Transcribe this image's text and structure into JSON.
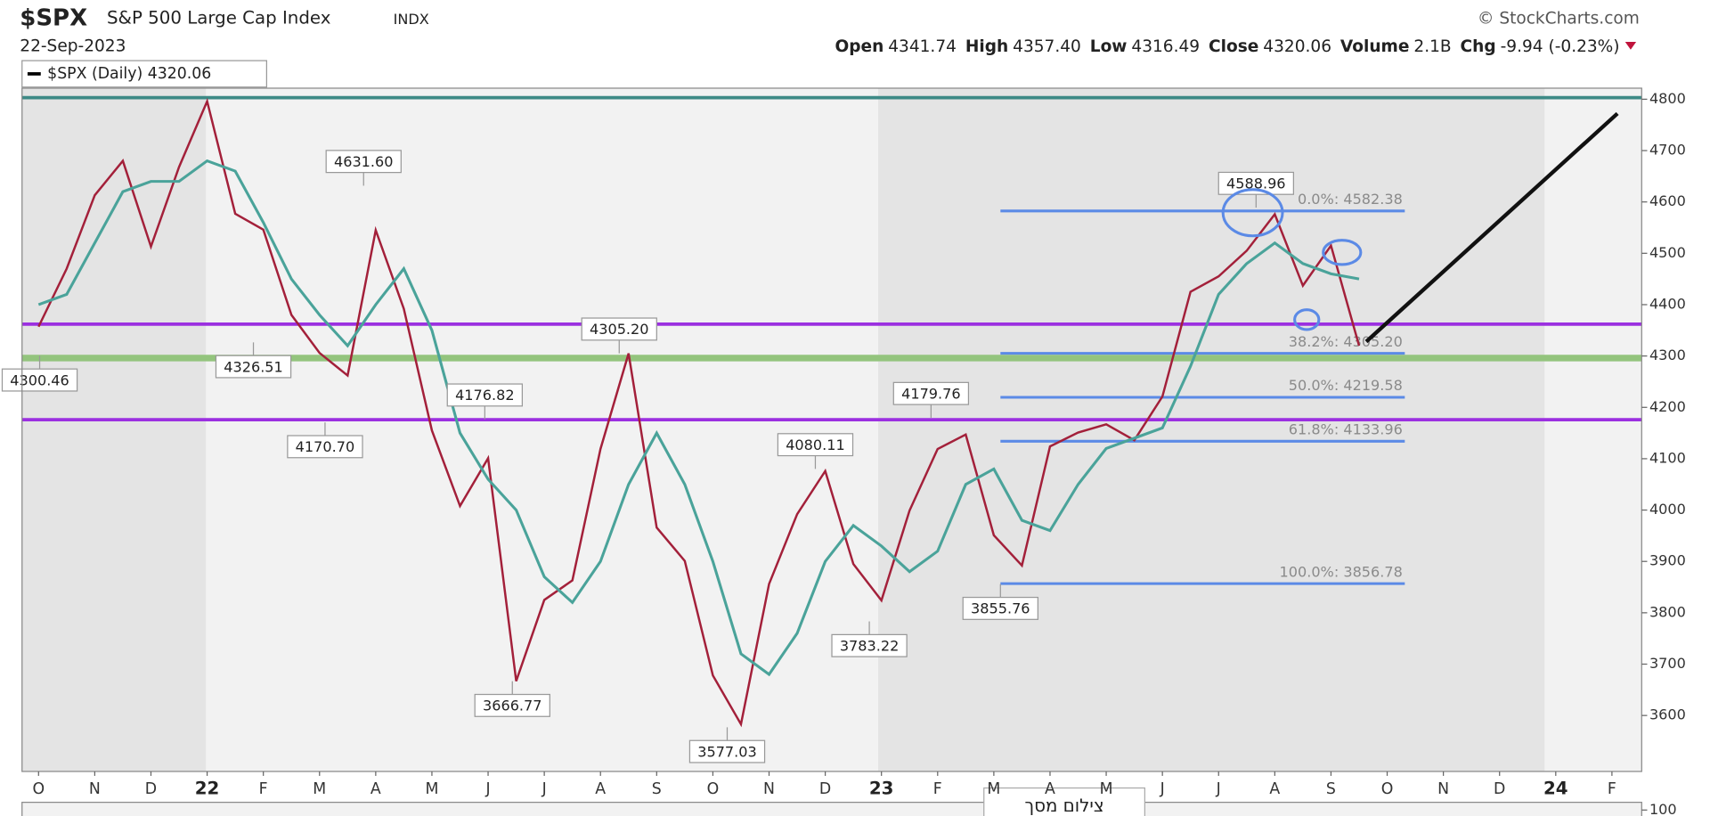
{
  "chart_data": {
    "type": "line",
    "title": "$SPX",
    "subtitle": "S&P 500 Large Cap Index",
    "exchange": "INDX",
    "date": "22-Sep-2023",
    "source": "© StockCharts.com",
    "quote": [
      {
        "name": "Open",
        "value": "4341.74"
      },
      {
        "name": "High",
        "value": "4357.40"
      },
      {
        "name": "Low",
        "value": "4316.49"
      },
      {
        "name": "Close",
        "value": "4320.06"
      },
      {
        "name": "Volume",
        "value": "2.1B"
      },
      {
        "name": "Chg",
        "value": "-9.94 (-0.23%)"
      }
    ],
    "categories": [
      "O",
      null,
      "N",
      null,
      "D",
      null,
      "22",
      null,
      "F",
      null,
      "M",
      null,
      "A",
      null,
      "M",
      null,
      "J",
      null,
      "J",
      null,
      "A",
      null,
      "S",
      null,
      "O",
      null,
      "N",
      null,
      "D",
      null,
      "23",
      null,
      "F",
      null,
      "M",
      null,
      "A",
      null,
      "M",
      null,
      "J",
      null,
      "J",
      null,
      "A",
      null,
      "S",
      null,
      "O",
      null,
      "N",
      null,
      "D",
      null,
      "24",
      null,
      "F",
      null
    ],
    "series": [
      {
        "name": "$SPX (Daily) 4320.06",
        "color": "#a3203a",
        "values": [
          4357,
          4470,
          4613,
          4680,
          4513,
          4668,
          4796,
          4577,
          4546,
          4380,
          4306,
          4262,
          4545,
          4392,
          4155,
          4008,
          4101,
          3667,
          3825,
          3863,
          4119,
          4305,
          3966,
          3901,
          3678,
          3583,
          3856,
          3992,
          4076,
          3895,
          3824,
          3999,
          4119,
          4147,
          3951,
          3892,
          4124,
          4151,
          4167,
          4136,
          4221,
          4425,
          4455,
          4505,
          4576,
          4437,
          4515,
          4320,
          null,
          null,
          null,
          null,
          null,
          null,
          null,
          null,
          null,
          null
        ]
      },
      {
        "color": "#4aa39a",
        "values": [
          4400,
          4420,
          4520,
          4620,
          4640,
          4640,
          4680,
          4660,
          4560,
          4450,
          4380,
          4320,
          4400,
          4470,
          4350,
          4150,
          4060,
          4000,
          3870,
          3820,
          3900,
          4050,
          4150,
          4050,
          3900,
          3720,
          3680,
          3760,
          3900,
          3970,
          3930,
          3880,
          3920,
          4050,
          4080,
          3980,
          3960,
          4050,
          4120,
          4140,
          4160,
          4280,
          4420,
          4480,
          4520,
          4480,
          4460,
          4450,
          null,
          null,
          null,
          null,
          null,
          null,
          null,
          null,
          null,
          null
        ]
      }
    ],
    "ylim": [
      3491,
      4821.5
    ],
    "yticks": [
      3600,
      3700,
      3800,
      3900,
      4000,
      4100,
      4200,
      4300,
      4400,
      4500,
      4600,
      4700,
      4800
    ],
    "grid": false,
    "peaks": {
      "values": [
        4300.46,
        4326.51,
        4170.7,
        4631.6,
        4176.82,
        3666.77,
        4305.2,
        3577.03,
        4080.11,
        3783.22,
        4179.76,
        3855.76,
        4588.96
      ],
      "value_labels": [
        "4300.46",
        "4326.51",
        "4170.70",
        "4631.60",
        "4176.82",
        "3666.77",
        "4305.20",
        "3577.03",
        "4080.11",
        "3783.22",
        "4179.76",
        "3855.76",
        "4588.96"
      ]
    },
    "hlines": [
      {
        "value": 4803,
        "color": "#3d8a86"
      },
      {
        "value": 4362,
        "color": "#9b30e0"
      },
      {
        "value": 4296,
        "color": "#93c47d"
      },
      {
        "value": 4176,
        "color": "#9b30e0"
      }
    ],
    "fib": [
      {
        "label": "0.0%: 4582.38",
        "value": 4582.38
      },
      {
        "label": "38.2%: 4305.20",
        "value": 4305.2
      },
      {
        "label": "50.0%: 4219.58",
        "value": 4219.58
      },
      {
        "label": "61.8%: 4133.96",
        "value": 4133.96
      },
      {
        "label": "100.0%: 3856.78",
        "value": 3856.78
      }
    ],
    "fib_color": "#5b8ae6",
    "lower_yticks": [
      100
    ],
    "tooltip": "צילום מסך"
  }
}
